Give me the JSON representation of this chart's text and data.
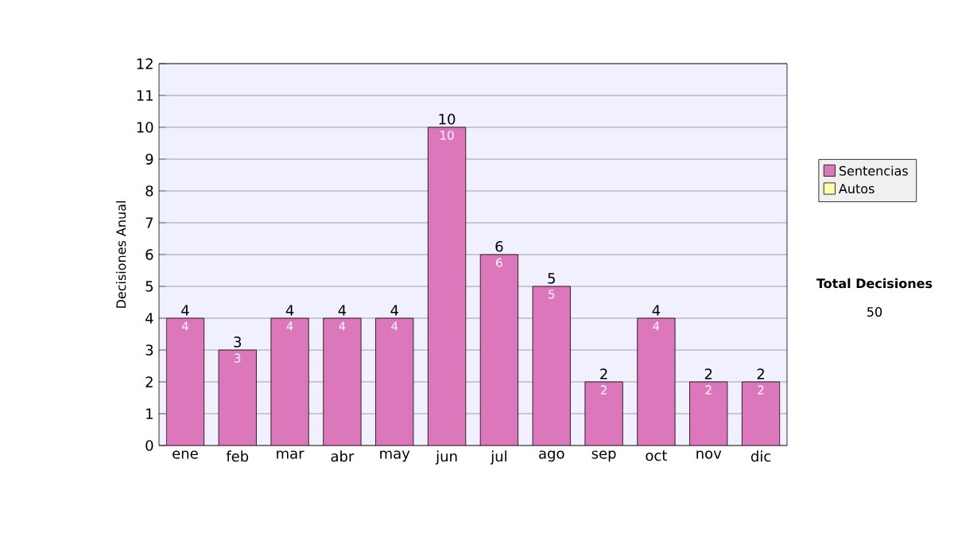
{
  "chart_data": {
    "type": "bar",
    "ylabel": "Decisiones Anual",
    "categories": [
      "ene",
      "feb",
      "mar",
      "abr",
      "may",
      "jun",
      "jul",
      "ago",
      "sep",
      "oct",
      "nov",
      "dic"
    ],
    "series": [
      {
        "name": "Sentencias",
        "color": "#dd77bb",
        "values": [
          4,
          3,
          4,
          4,
          4,
          10,
          6,
          5,
          2,
          4,
          2,
          2
        ],
        "value_labels": [
          "4",
          "3",
          "4",
          "4",
          "4",
          "10",
          "6",
          "5",
          "2",
          "4",
          "2",
          "2"
        ]
      },
      {
        "name": "Autos",
        "color": "#ffffaa",
        "values": [
          0,
          0,
          0,
          0,
          0,
          0,
          0,
          0,
          0,
          0,
          0,
          0
        ]
      }
    ],
    "stacked": true,
    "totals": [
      "4",
      "3",
      "4",
      "4",
      "4",
      "10",
      "6",
      "5",
      "2",
      "4",
      "2",
      "2"
    ],
    "ylim": [
      0,
      12
    ],
    "yticks": [
      0,
      1,
      2,
      3,
      4,
      5,
      6,
      7,
      8,
      9,
      10,
      11,
      12
    ],
    "grid": "y",
    "legend": "right",
    "annotations": [
      "Total Decisiones",
      "50"
    ]
  }
}
